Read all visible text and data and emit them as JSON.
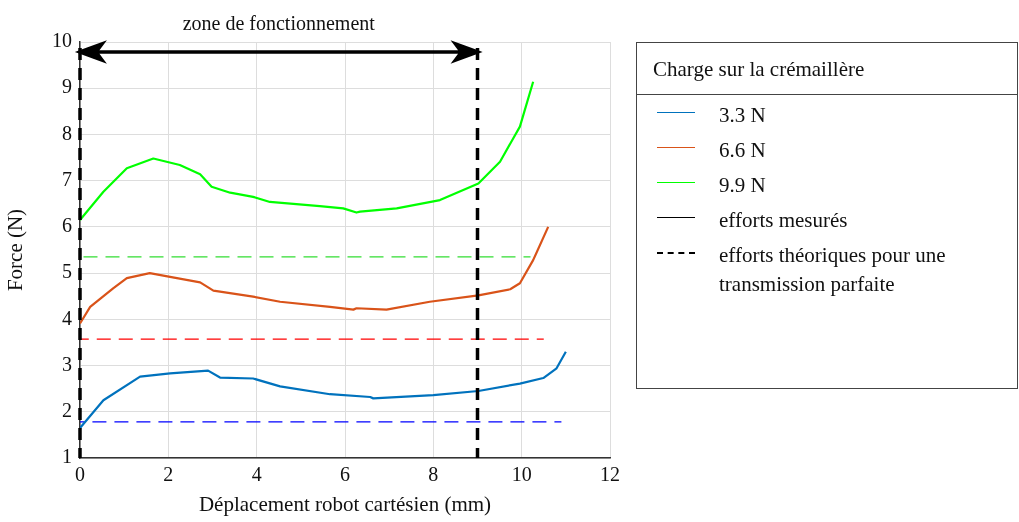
{
  "chart_data": {
    "type": "line",
    "xlabel": "Déplacement robot cartésien (mm)",
    "ylabel": "Force (N)",
    "legend_title": "Charge sur la crémaillère",
    "xlim": [
      0,
      12
    ],
    "xticks": [
      0,
      2,
      4,
      6,
      8,
      10,
      12
    ],
    "ylim": [
      1,
      10
    ],
    "yticks": [
      1,
      2,
      3,
      4,
      5,
      6,
      7,
      8,
      9,
      10
    ],
    "grid": true,
    "legend": "right",
    "line_style": "solid",
    "ref_lines": [
      {
        "axis": "x",
        "value": 0,
        "color": "#000000",
        "line_style": "dashed"
      },
      {
        "axis": "x",
        "value": 9,
        "color": "#000000",
        "line_style": "dashed"
      }
    ],
    "annotations": [
      "zone de fonctionnement"
    ],
    "series": [
      {
        "name": "3.3 N",
        "color": "#0072bd",
        "x": [
          0,
          0.53,
          1.36,
          2.04,
          2.9,
          3.17,
          3.92,
          4.53,
          5.66,
          6.57,
          6.64,
          8.0,
          9.02,
          9.96,
          10.49,
          10.79,
          11.0
        ],
        "values": [
          1.65,
          2.25,
          2.76,
          2.83,
          2.89,
          2.74,
          2.72,
          2.55,
          2.38,
          2.32,
          2.29,
          2.36,
          2.45,
          2.61,
          2.73,
          2.94,
          3.3
        ]
      },
      {
        "name": "6.6 N",
        "color": "#d95319",
        "x": [
          0,
          0.23,
          0.75,
          1.06,
          1.58,
          2.04,
          2.72,
          3.02,
          3.92,
          4.53,
          5.66,
          6.19,
          6.26,
          6.94,
          7.92,
          9.02,
          9.74,
          9.96,
          10.26,
          10.6
        ],
        "values": [
          3.91,
          4.27,
          4.67,
          4.89,
          5.0,
          4.92,
          4.8,
          4.62,
          4.49,
          4.38,
          4.27,
          4.21,
          4.24,
          4.21,
          4.38,
          4.52,
          4.65,
          4.78,
          5.28,
          6.0
        ]
      },
      {
        "name": "9.9 N",
        "color": "#00ff00",
        "x": [
          0,
          0.53,
          1.06,
          1.66,
          2.26,
          2.72,
          2.98,
          3.4,
          3.92,
          4.3,
          5.43,
          5.96,
          6.26,
          6.34,
          7.17,
          8.15,
          9.02,
          9.51,
          9.96,
          10.26
        ],
        "values": [
          6.15,
          6.76,
          7.27,
          7.48,
          7.34,
          7.14,
          6.87,
          6.74,
          6.65,
          6.54,
          6.45,
          6.4,
          6.31,
          6.33,
          6.4,
          6.58,
          6.94,
          7.41,
          8.17,
          9.14
        ]
      },
      {
        "color": "#0000ff",
        "line_style": "dashed",
        "x": [
          0,
          10.9
        ],
        "values": [
          1.78,
          1.78
        ]
      },
      {
        "color": "#ff0000",
        "line_style": "dashed",
        "x": [
          0,
          10.5
        ],
        "values": [
          3.57,
          3.57
        ]
      },
      {
        "color": "#33dd33",
        "line_style": "dashed",
        "x": [
          0,
          10.2
        ],
        "values": [
          5.35,
          5.35
        ]
      },
      {
        "name": "efforts mesurés",
        "color": "#000000",
        "line_style": "solid"
      },
      {
        "name": "efforts théoriques pour une transmission parfaite",
        "color": "#000000",
        "line_style": "dashed"
      }
    ]
  }
}
